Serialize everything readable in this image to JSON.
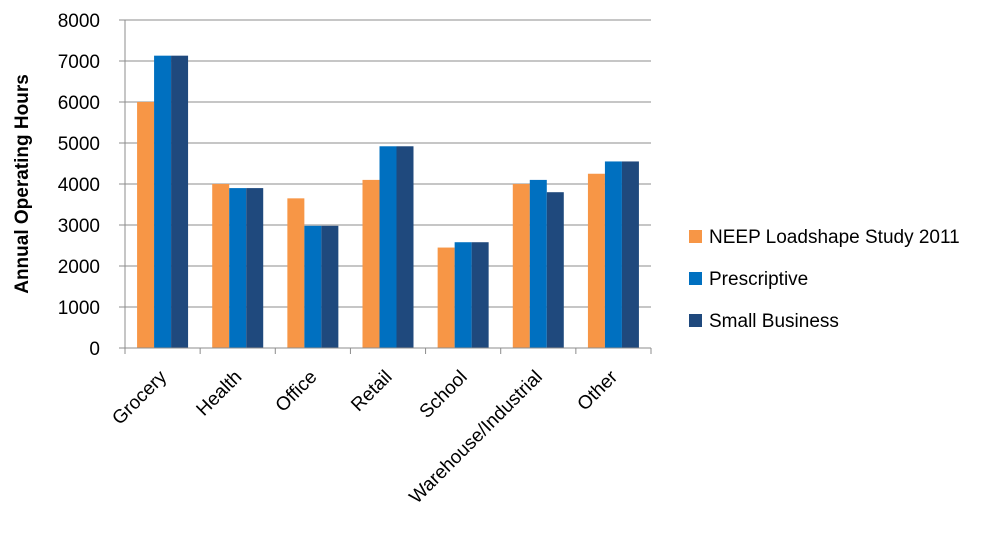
{
  "chart_data": {
    "type": "bar",
    "ylabel": "Annual Operating Hours",
    "ylim": [
      0,
      8000
    ],
    "yticks": [
      0,
      1000,
      2000,
      3000,
      4000,
      5000,
      6000,
      7000,
      8000
    ],
    "grid": true,
    "legend_position": "right",
    "categories": [
      "Grocery",
      "Health",
      "Office",
      "Retail",
      "School",
      "Warehouse/Industrial",
      "Other"
    ],
    "series": [
      {
        "name": "NEEP Loadshape Study 2011",
        "color": "#F79646",
        "values": [
          6000,
          4000,
          3650,
          4100,
          2450,
          4000,
          4250
        ]
      },
      {
        "name": "Prescriptive",
        "color": "#0070C0",
        "values": [
          7130,
          3900,
          2980,
          4920,
          2580,
          4100,
          4550
        ]
      },
      {
        "name": "Small Business",
        "color": "#1F497D",
        "values": [
          7130,
          3900,
          2980,
          4920,
          2580,
          3800,
          4550
        ]
      }
    ]
  }
}
